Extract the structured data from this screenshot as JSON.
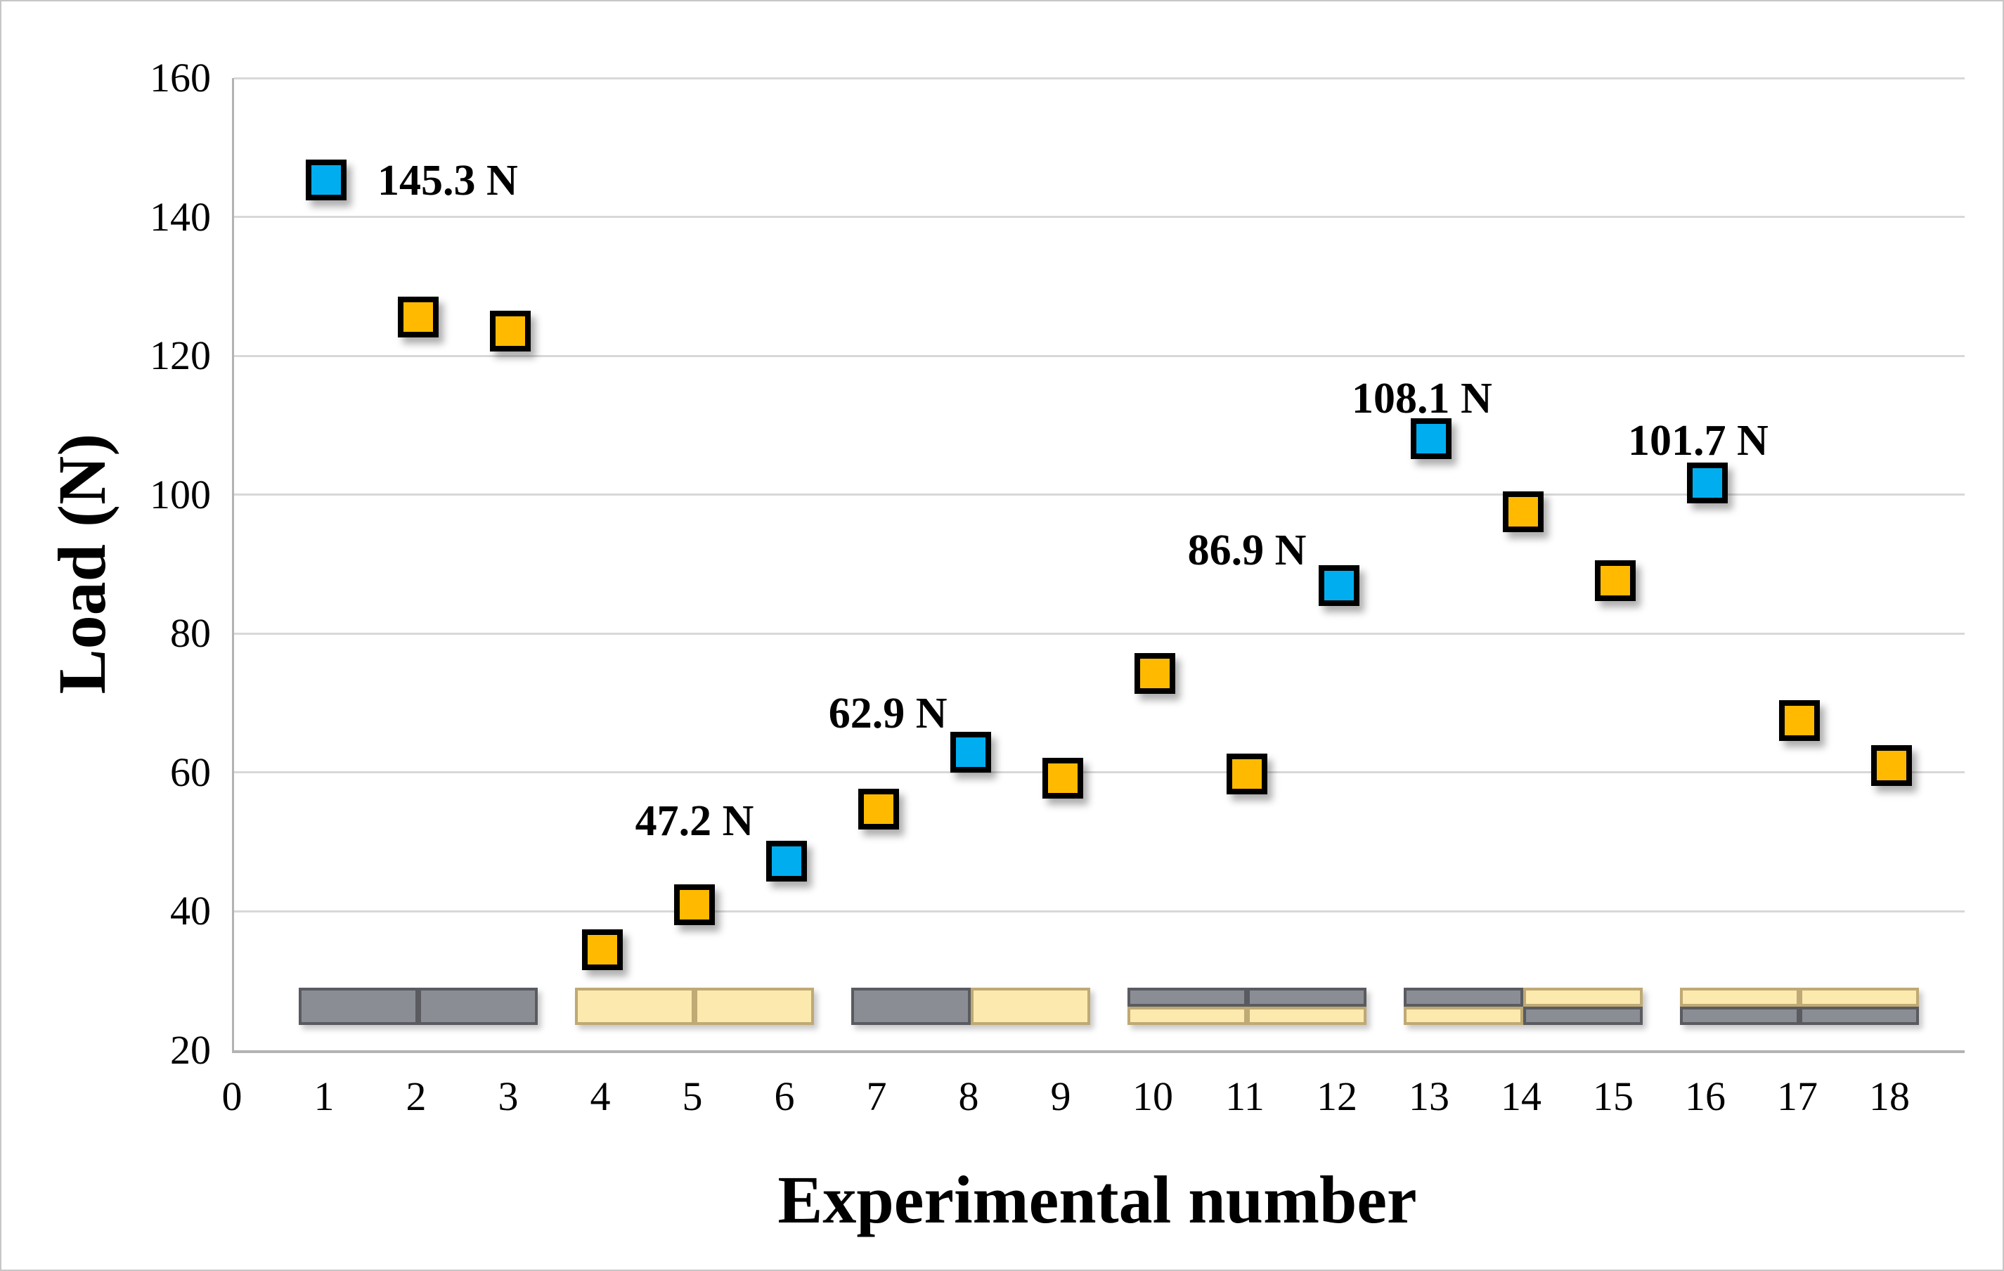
{
  "chart_data": {
    "type": "scatter",
    "title": "",
    "xlabel": "Experimental number",
    "ylabel": "Load (N)",
    "xlim": [
      0,
      18
    ],
    "ylim": [
      20,
      160
    ],
    "xticks": [
      0,
      1,
      2,
      3,
      4,
      5,
      6,
      7,
      8,
      9,
      10,
      11,
      12,
      13,
      14,
      15,
      16,
      17,
      18
    ],
    "yticks": [
      20,
      40,
      60,
      80,
      100,
      120,
      140,
      160
    ],
    "grid": "horizontal-only",
    "legend": "none",
    "colors": {
      "labeled_marker_blue": "#00AEEF",
      "unlabeled_marker_orange": "#FFBA00",
      "marker_border": "#000000",
      "gray_specimen_fill": "#8A8D94",
      "gray_specimen_border": "#595B60",
      "cream_specimen_fill": "#FCE9AE",
      "cream_specimen_border": "#BFA974",
      "gridline": "#D8D8D8",
      "axis_line": "#B3B3B3"
    },
    "points": [
      {
        "x": 1,
        "y": 145.3,
        "color": "blue",
        "label": "145.3 N",
        "label_at": [
          2.32,
          145.2
        ]
      },
      {
        "x": 2,
        "y": 125.6,
        "color": "orange"
      },
      {
        "x": 3,
        "y": 123.6,
        "color": "orange"
      },
      {
        "x": 4,
        "y": 34.5,
        "color": "orange"
      },
      {
        "x": 5,
        "y": 41.0,
        "color": "orange"
      },
      {
        "x": 6,
        "y": 47.2,
        "color": "blue",
        "label": "47.2 N",
        "label_at": [
          5.0,
          53.0
        ]
      },
      {
        "x": 7,
        "y": 54.7,
        "color": "orange"
      },
      {
        "x": 8,
        "y": 62.9,
        "color": "blue",
        "label": "62.9 N",
        "label_at": [
          7.1,
          68.5
        ]
      },
      {
        "x": 9,
        "y": 59.2,
        "color": "orange"
      },
      {
        "x": 10,
        "y": 74.3,
        "color": "orange"
      },
      {
        "x": 11,
        "y": 59.8,
        "color": "orange"
      },
      {
        "x": 12,
        "y": 86.9,
        "color": "blue",
        "label": "86.9 N",
        "label_at": [
          11.0,
          92.0
        ]
      },
      {
        "x": 13,
        "y": 108.1,
        "color": "blue",
        "label": "108.1 N",
        "label_at": [
          12.9,
          113.8
        ]
      },
      {
        "x": 14,
        "y": 97.5,
        "color": "orange"
      },
      {
        "x": 15,
        "y": 87.6,
        "color": "orange"
      },
      {
        "x": 16,
        "y": 101.7,
        "color": "blue",
        "label": "101.7 N",
        "label_at": [
          15.9,
          107.8
        ]
      },
      {
        "x": 17,
        "y": 67.5,
        "color": "orange"
      },
      {
        "x": 18,
        "y": 61.0,
        "color": "orange"
      }
    ],
    "specimen_schematics": {
      "description": "two-tone specimen configuration glyphs drawn above the x-axis",
      "y_top": 29.0,
      "y_bottom": 23.6,
      "width_units": 2.6,
      "groups": [
        {
          "center_x": 2,
          "rows": [
            [
              "gray",
              "gray"
            ]
          ]
        },
        {
          "center_x": 5,
          "rows": [
            [
              "cream",
              "cream"
            ]
          ]
        },
        {
          "center_x": 8,
          "rows": [
            [
              "gray",
              "cream"
            ]
          ]
        },
        {
          "center_x": 11,
          "rows": [
            [
              "gray",
              "gray"
            ],
            [
              "cream",
              "cream"
            ]
          ]
        },
        {
          "center_x": 14,
          "rows": [
            [
              "gray",
              "cream"
            ],
            [
              "cream",
              "gray"
            ]
          ]
        },
        {
          "center_x": 17,
          "rows": [
            [
              "cream",
              "cream"
            ],
            [
              "gray",
              "gray"
            ]
          ]
        }
      ]
    }
  }
}
